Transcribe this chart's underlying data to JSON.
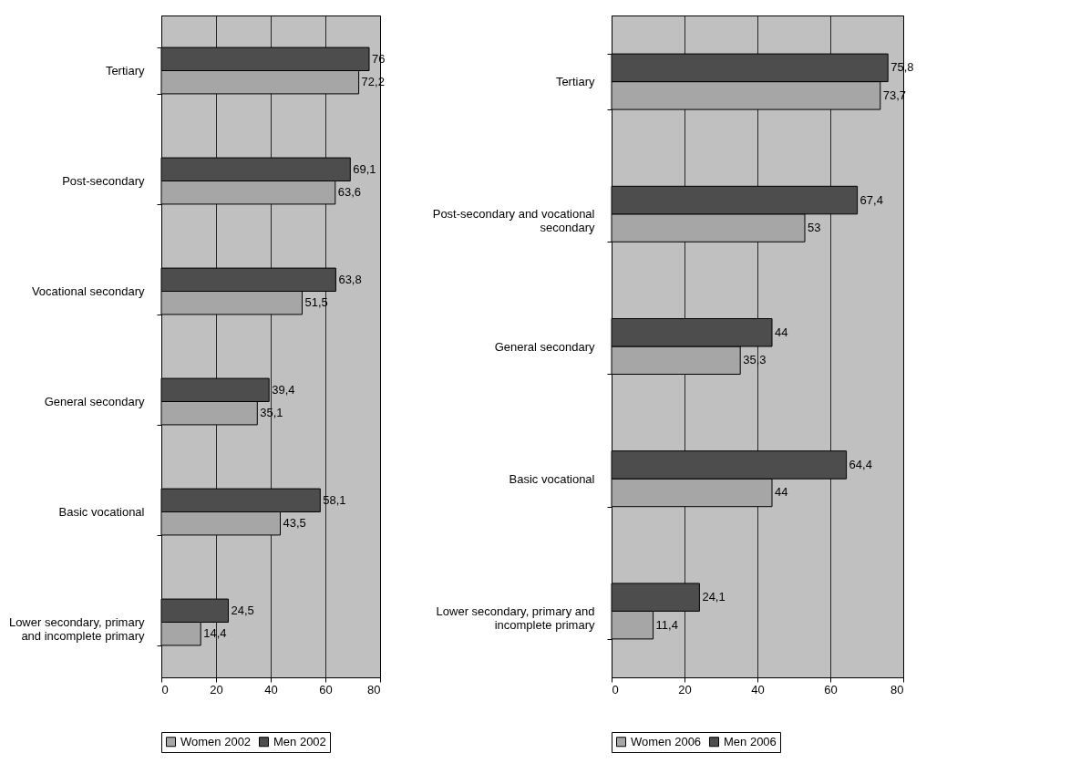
{
  "chart_data": [
    {
      "type": "bar",
      "orientation": "horizontal",
      "categories": [
        "Tertiary",
        "Post-secondary",
        "Vocational secondary",
        "General secondary",
        "Basic vocational",
        "Lower secondary, primary and incomplete primary"
      ],
      "series": [
        {
          "name": "Women 2002",
          "color": "#a6a6a6",
          "values": [
            72.2,
            63.6,
            51.5,
            35.1,
            43.5,
            14.4
          ],
          "value_labels": [
            "72,2",
            "63,6",
            "51,5",
            "35,1",
            "43,5",
            "14,4"
          ]
        },
        {
          "name": "Men 2002",
          "color": "#4d4d4d",
          "values": [
            76,
            69.1,
            63.8,
            39.4,
            58.1,
            24.5
          ],
          "value_labels": [
            "76",
            "69,1",
            "63,8",
            "39,4",
            "58,1",
            "24,5"
          ]
        }
      ],
      "xlim": [
        0,
        80
      ],
      "xticks": [
        0,
        20,
        40,
        60,
        80
      ],
      "grid": "x",
      "legend": "bottom"
    },
    {
      "type": "bar",
      "orientation": "horizontal",
      "categories": [
        "Tertiary",
        "Post-secondary and vocational secondary",
        "General secondary",
        "Basic vocational",
        "Lower secondary, primary and incomplete primary"
      ],
      "series": [
        {
          "name": "Women 2006",
          "color": "#a6a6a6",
          "values": [
            73.7,
            53,
            35.3,
            44,
            11.4
          ],
          "value_labels": [
            "73,7",
            "53",
            "35,3",
            "44",
            "11,4"
          ]
        },
        {
          "name": "Men 2006",
          "color": "#4d4d4d",
          "values": [
            75.8,
            67.4,
            44,
            64.4,
            24.1
          ],
          "value_labels": [
            "75,8",
            "67,4",
            "44",
            "64,4",
            "24,1"
          ]
        }
      ],
      "xlim": [
        0,
        80
      ],
      "xticks": [
        0,
        20,
        40,
        60,
        80
      ],
      "grid": "x",
      "legend": "bottom"
    }
  ]
}
